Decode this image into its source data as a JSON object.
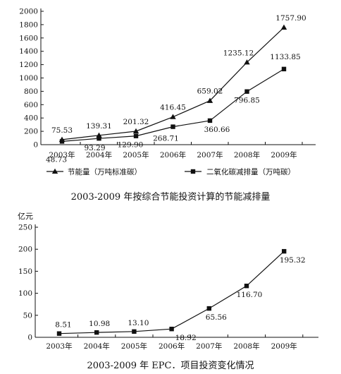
{
  "chart_data": [
    {
      "type": "line",
      "caption": "2003-2009 年按综合节能投资计算的节能减排量",
      "categories": [
        "2003年",
        "2004年",
        "2005年",
        "2006年",
        "2007年",
        "2008年",
        "2009年"
      ],
      "ylim": [
        0,
        2000
      ],
      "yticks": [
        0,
        200,
        400,
        600,
        800,
        1000,
        1200,
        1400,
        1600,
        1800,
        2000
      ],
      "series": [
        {
          "name": "节能量（万吨标准碳）",
          "marker": "triangle",
          "values": [
            75.53,
            139.31,
            201.32,
            416.45,
            659.02,
            1235.12,
            1757.9
          ],
          "labels": [
            "75.53",
            "139.31",
            "201.32",
            "416.45",
            "659.02",
            "1235.12",
            "1757.90"
          ]
        },
        {
          "name": "二氧化碳减排量（万吨碳）",
          "marker": "square",
          "values": [
            48.73,
            93.29,
            129.9,
            268.71,
            360.66,
            796.85,
            1133.85
          ],
          "labels": [
            "48.73",
            "93.29",
            "129.90",
            "268.71",
            "360.66",
            "796.85",
            "1133.85"
          ]
        }
      ],
      "legend": "bottom"
    },
    {
      "type": "line",
      "caption": "2003-2009 年 EPC．项目投资变化情况",
      "ylabel": "亿元",
      "categories": [
        "2003年",
        "2004年",
        "2005年",
        "2006年",
        "2007年",
        "2008年",
        "2009年"
      ],
      "ylim": [
        0,
        250
      ],
      "yticks": [
        0,
        50,
        100,
        150,
        200,
        250
      ],
      "series": [
        {
          "marker": "square",
          "values": [
            8.51,
            10.98,
            13.1,
            18.92,
            65.56,
            116.7,
            195.32
          ],
          "labels": [
            "8.51",
            "10.98",
            "13.10",
            "18.92",
            "65.56",
            "116.70",
            "195.32"
          ]
        }
      ]
    }
  ]
}
